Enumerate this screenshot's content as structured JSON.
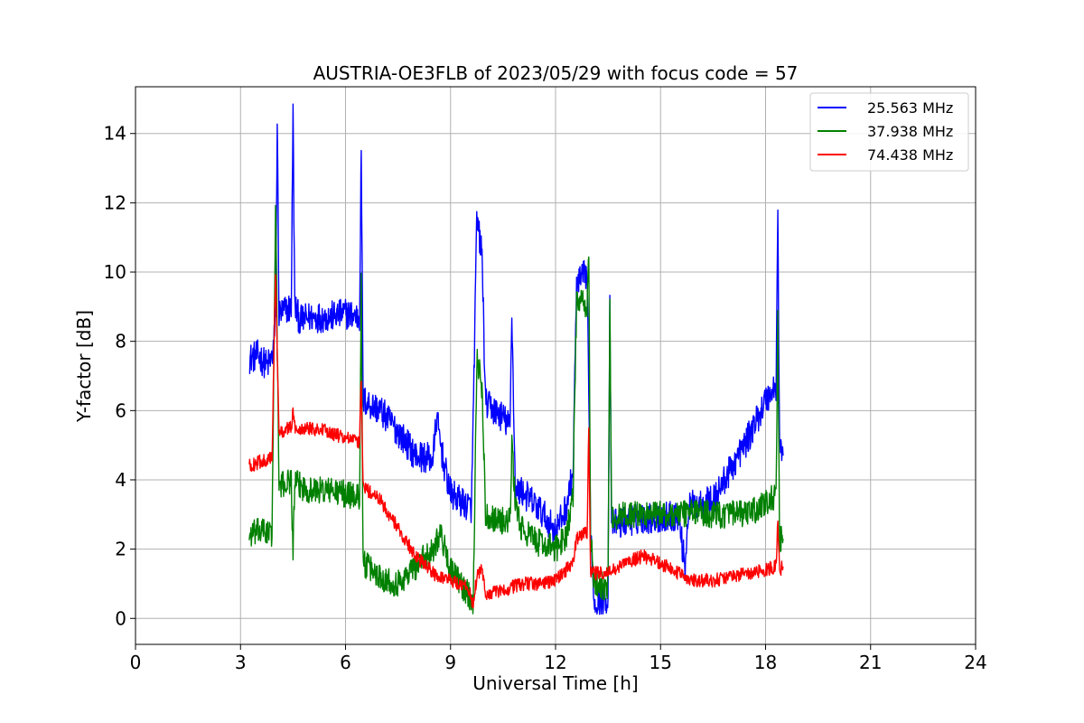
{
  "chart_data": {
    "type": "line",
    "title": "AUSTRIA-OE3FLB of 2023/05/29 with focus code = 57",
    "xlabel": "Universal Time [h]",
    "ylabel": "Y-factor [dB]",
    "xlim": [
      0,
      24
    ],
    "ylim": [
      -0.75,
      15.35
    ],
    "xticks": [
      0,
      3,
      6,
      9,
      12,
      15,
      18,
      21,
      24
    ],
    "yticks": [
      0,
      2,
      4,
      6,
      8,
      10,
      12,
      14
    ],
    "grid": true,
    "legend_position": "top-right",
    "series": [
      {
        "name": "25.563 MHz",
        "color": "#0000ff",
        "band": 0.9,
        "points": [
          [
            3.25,
            7.5
          ],
          [
            3.5,
            7.6
          ],
          [
            3.75,
            7.3
          ],
          [
            3.9,
            7.5
          ],
          [
            4.0,
            8.5
          ],
          [
            4.05,
            14.4
          ],
          [
            4.1,
            8.8
          ],
          [
            4.3,
            8.9
          ],
          [
            4.45,
            9.0
          ],
          [
            4.5,
            14.6
          ],
          [
            4.55,
            9.0
          ],
          [
            4.7,
            8.6
          ],
          [
            5.0,
            8.7
          ],
          [
            5.5,
            8.7
          ],
          [
            6.0,
            8.8
          ],
          [
            6.4,
            8.7
          ],
          [
            6.45,
            13.7
          ],
          [
            6.5,
            6.3
          ],
          [
            7.0,
            6.0
          ],
          [
            7.5,
            5.4
          ],
          [
            8.0,
            4.7
          ],
          [
            8.5,
            4.6
          ],
          [
            8.6,
            5.8
          ],
          [
            8.8,
            4.5
          ],
          [
            9.0,
            3.6
          ],
          [
            9.4,
            3.3
          ],
          [
            9.6,
            3.2
          ],
          [
            9.75,
            11.5
          ],
          [
            9.9,
            10.5
          ],
          [
            10.0,
            6.2
          ],
          [
            10.5,
            5.8
          ],
          [
            10.7,
            5.5
          ],
          [
            10.75,
            9.0
          ],
          [
            10.85,
            3.6
          ],
          [
            11.0,
            3.7
          ],
          [
            11.5,
            3.2
          ],
          [
            12.0,
            2.5
          ],
          [
            12.3,
            3.2
          ],
          [
            12.5,
            4.2
          ],
          [
            12.6,
            9.6
          ],
          [
            12.9,
            10.0
          ],
          [
            13.0,
            2.7
          ],
          [
            13.1,
            0.5
          ],
          [
            13.5,
            0.6
          ],
          [
            13.55,
            9.4
          ],
          [
            13.6,
            2.7
          ],
          [
            14.0,
            2.8
          ],
          [
            14.5,
            2.9
          ],
          [
            15.0,
            2.9
          ],
          [
            15.5,
            3.0
          ],
          [
            15.7,
            1.5
          ],
          [
            15.8,
            3.2
          ],
          [
            16.0,
            3.3
          ],
          [
            16.5,
            3.4
          ],
          [
            17.0,
            4.3
          ],
          [
            17.5,
            5.2
          ],
          [
            18.0,
            6.3
          ],
          [
            18.3,
            6.7
          ],
          [
            18.35,
            11.7
          ],
          [
            18.4,
            5.0
          ],
          [
            18.5,
            4.7
          ]
        ]
      },
      {
        "name": "37.938 MHz",
        "color": "#008000",
        "band": 0.8,
        "points": [
          [
            3.25,
            2.4
          ],
          [
            3.5,
            2.5
          ],
          [
            3.75,
            2.5
          ],
          [
            3.9,
            2.4
          ],
          [
            4.0,
            12.0
          ],
          [
            4.1,
            3.8
          ],
          [
            4.3,
            3.9
          ],
          [
            4.45,
            4.0
          ],
          [
            4.5,
            1.9
          ],
          [
            4.55,
            3.9
          ],
          [
            5.0,
            3.7
          ],
          [
            5.5,
            3.7
          ],
          [
            6.0,
            3.6
          ],
          [
            6.4,
            3.5
          ],
          [
            6.45,
            9.8
          ],
          [
            6.5,
            1.6
          ],
          [
            7.0,
            1.2
          ],
          [
            7.5,
            1.0
          ],
          [
            8.0,
            1.5
          ],
          [
            8.5,
            2.0
          ],
          [
            8.7,
            2.5
          ],
          [
            9.0,
            1.4
          ],
          [
            9.5,
            0.7
          ],
          [
            9.65,
            0.5
          ],
          [
            9.75,
            7.5
          ],
          [
            9.9,
            6.7
          ],
          [
            10.0,
            3.0
          ],
          [
            10.5,
            2.8
          ],
          [
            10.7,
            2.8
          ],
          [
            10.75,
            5.0
          ],
          [
            10.85,
            3.4
          ],
          [
            11.0,
            2.6
          ],
          [
            11.5,
            2.2
          ],
          [
            12.0,
            2.0
          ],
          [
            12.3,
            2.4
          ],
          [
            12.5,
            3.5
          ],
          [
            12.6,
            9.2
          ],
          [
            12.9,
            9.0
          ],
          [
            12.95,
            10.4
          ],
          [
            13.0,
            2.4
          ],
          [
            13.1,
            1.0
          ],
          [
            13.5,
            0.9
          ],
          [
            13.55,
            9.3
          ],
          [
            13.6,
            2.9
          ],
          [
            14.0,
            3.0
          ],
          [
            14.5,
            3.0
          ],
          [
            15.0,
            3.0
          ],
          [
            15.5,
            3.0
          ],
          [
            16.0,
            3.1
          ],
          [
            16.5,
            3.0
          ],
          [
            17.0,
            3.0
          ],
          [
            17.5,
            3.0
          ],
          [
            18.0,
            3.3
          ],
          [
            18.3,
            3.6
          ],
          [
            18.35,
            8.5
          ],
          [
            18.4,
            2.3
          ],
          [
            18.5,
            2.3
          ]
        ]
      },
      {
        "name": "74.438 MHz",
        "color": "#ff0000",
        "band": 0.4,
        "points": [
          [
            3.25,
            4.4
          ],
          [
            3.5,
            4.5
          ],
          [
            3.75,
            4.6
          ],
          [
            3.9,
            4.6
          ],
          [
            4.0,
            10.1
          ],
          [
            4.1,
            5.3
          ],
          [
            4.3,
            5.5
          ],
          [
            4.45,
            5.5
          ],
          [
            4.5,
            6.0
          ],
          [
            4.55,
            5.5
          ],
          [
            5.0,
            5.5
          ],
          [
            5.5,
            5.4
          ],
          [
            6.0,
            5.2
          ],
          [
            6.4,
            5.1
          ],
          [
            6.45,
            7.0
          ],
          [
            6.5,
            3.8
          ],
          [
            7.0,
            3.4
          ],
          [
            7.5,
            2.6
          ],
          [
            8.0,
            1.8
          ],
          [
            8.5,
            1.3
          ],
          [
            9.0,
            1.1
          ],
          [
            9.5,
            0.9
          ],
          [
            9.65,
            0.4
          ],
          [
            9.75,
            1.2
          ],
          [
            9.9,
            1.4
          ],
          [
            10.0,
            0.7
          ],
          [
            10.5,
            0.8
          ],
          [
            11.0,
            1.0
          ],
          [
            11.5,
            1.0
          ],
          [
            12.0,
            1.1
          ],
          [
            12.5,
            1.6
          ],
          [
            12.6,
            2.3
          ],
          [
            12.9,
            2.5
          ],
          [
            12.95,
            5.5
          ],
          [
            13.0,
            1.3
          ],
          [
            13.5,
            1.3
          ],
          [
            14.0,
            1.6
          ],
          [
            14.5,
            1.8
          ],
          [
            15.0,
            1.6
          ],
          [
            15.5,
            1.3
          ],
          [
            16.0,
            1.1
          ],
          [
            16.5,
            1.1
          ],
          [
            17.0,
            1.2
          ],
          [
            17.5,
            1.3
          ],
          [
            18.0,
            1.4
          ],
          [
            18.3,
            1.5
          ],
          [
            18.35,
            2.8
          ],
          [
            18.4,
            1.4
          ],
          [
            18.5,
            1.5
          ]
        ]
      }
    ]
  }
}
